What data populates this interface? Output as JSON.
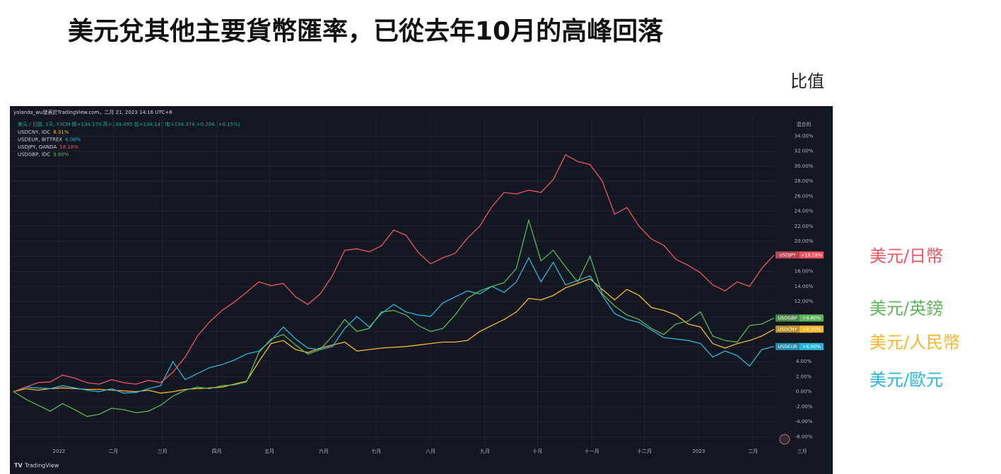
{
  "chart_data": {
    "type": "line",
    "title": "美元兌其他主要貨幣匯率，已從去年10月的高峰回落",
    "note": "比值",
    "watermark": "yolanda_wu發表於TradingView.com，二月 21, 2023 14:16 UTC+8",
    "header": "美元 / 日圓, 1天, FXCM 開=134.170 高=134.495 低=134.147 收=134.374 +0.204 (+0.15%)",
    "axis_title": "混合的",
    "footer": "TradingView",
    "grid": true,
    "x": [
      -26,
      -19,
      -12,
      -5,
      2,
      9,
      16,
      23,
      30,
      37,
      44,
      51,
      58,
      65,
      72,
      79,
      86,
      93,
      100,
      107,
      114,
      121,
      128,
      135,
      142,
      149,
      156,
      163,
      170,
      177,
      184,
      191,
      198,
      205,
      212,
      219,
      226,
      233,
      240,
      247,
      254,
      261,
      268,
      275,
      282,
      289,
      296,
      303,
      310,
      317,
      324,
      331,
      338,
      345,
      352,
      359,
      366,
      373,
      380,
      387,
      394,
      401,
      408
    ],
    "xlim": [
      -26,
      408
    ],
    "xticks": [
      {
        "value": 0,
        "label": "2022"
      },
      {
        "value": 31,
        "label": "二月"
      },
      {
        "value": 59,
        "label": "三月"
      },
      {
        "value": 90,
        "label": "四月"
      },
      {
        "value": 120,
        "label": "五月"
      },
      {
        "value": 151,
        "label": "六月"
      },
      {
        "value": 181,
        "label": "七月"
      },
      {
        "value": 212,
        "label": "八月"
      },
      {
        "value": 243,
        "label": "九月"
      },
      {
        "value": 273,
        "label": "十月"
      },
      {
        "value": 304,
        "label": "十一月"
      },
      {
        "value": 334,
        "label": "十二月"
      },
      {
        "value": 365,
        "label": "2023"
      },
      {
        "value": 396,
        "label": "二月"
      },
      {
        "value": 424,
        "label": "三月"
      }
    ],
    "ylim": [
      -7,
      36
    ],
    "yticks": [
      {
        "value": -6,
        "label": "-6.00%"
      },
      {
        "value": -4,
        "label": "-4.00%"
      },
      {
        "value": -2,
        "label": "-2.00%"
      },
      {
        "value": 0,
        "label": "0.00%"
      },
      {
        "value": 2,
        "label": "2.00%"
      },
      {
        "value": 4,
        "label": "4.00%"
      },
      {
        "value": 6,
        "label": "6.00%"
      },
      {
        "value": 8,
        "label": "8.00%"
      },
      {
        "value": 10,
        "label": "10.00%"
      },
      {
        "value": 12,
        "label": "12.00%"
      },
      {
        "value": 14,
        "label": "14.00%"
      },
      {
        "value": 16,
        "label": "16.00%"
      },
      {
        "value": 18,
        "label": "18.00%"
      },
      {
        "value": 20,
        "label": "20.00%"
      },
      {
        "value": 22,
        "label": "22.00%"
      },
      {
        "value": 24,
        "label": "24.00%"
      },
      {
        "value": 26,
        "label": "26.00%"
      },
      {
        "value": 28,
        "label": "28.00%"
      },
      {
        "value": 30,
        "label": "30.00%"
      },
      {
        "value": 32,
        "label": "32.00%"
      },
      {
        "value": 34,
        "label": "34.00%"
      }
    ],
    "series": [
      {
        "name": "美元/人民幣",
        "color": "#f5b82e",
        "source": "USDCNY, IDC",
        "last_label": "8.31%",
        "tag": "USDCNY",
        "tag_label": "+8.31%",
        "values": [
          0,
          0.4,
          0.2,
          0.4,
          0.5,
          0.4,
          0.3,
          0.3,
          0.2,
          0.1,
          0.0,
          0.2,
          -0.2,
          0.0,
          0.3,
          0.4,
          0.5,
          0.6,
          1.0,
          1.4,
          4.0,
          6.4,
          6.8,
          5.6,
          5.2,
          5.8,
          6.2,
          6.6,
          5.4,
          5.6,
          5.8,
          5.9,
          6.0,
          6.2,
          6.4,
          6.6,
          6.6,
          6.8,
          8.0,
          8.8,
          9.6,
          10.6,
          12.4,
          12.2,
          12.8,
          13.8,
          14.4,
          15.0,
          13.6,
          12.2,
          13.6,
          12.8,
          11.2,
          10.8,
          10.2,
          9.0,
          8.6,
          6.4,
          5.8,
          6.4,
          6.8,
          7.4,
          8.31
        ]
      },
      {
        "name": "美元/歐元",
        "color": "#2bb5d8",
        "source": "USDEUR, BITTREX",
        "last_label": "6.00%",
        "tag": "USDEUR",
        "tag_label": "+6.00%",
        "values": [
          0,
          0.6,
          0.5,
          0.4,
          0.8,
          0.5,
          0.2,
          0.0,
          0.4,
          -0.2,
          -0.1,
          0.4,
          0.8,
          4.0,
          1.6,
          2.4,
          3.2,
          3.6,
          4.2,
          5.0,
          5.4,
          6.8,
          8.6,
          7.0,
          5.8,
          5.6,
          6.0,
          8.4,
          10.0,
          8.6,
          10.4,
          11.6,
          10.6,
          10.2,
          10.0,
          11.8,
          12.6,
          13.4,
          13.0,
          14.0,
          13.2,
          14.6,
          17.8,
          14.6,
          17.2,
          14.2,
          14.8,
          15.4,
          12.8,
          10.4,
          9.6,
          9.2,
          8.2,
          7.2,
          7.0,
          6.8,
          6.4,
          4.6,
          5.4,
          4.8,
          3.4,
          5.6,
          6.0
        ]
      },
      {
        "name": "美元/日幣",
        "color": "#f05461",
        "source": "USDJPY, OANDA",
        "last_label": "18.18%",
        "tag": "USDJPY",
        "tag_label": "+18.18%",
        "values": [
          0,
          0.6,
          1.2,
          1.3,
          2.2,
          1.8,
          1.2,
          1.0,
          1.6,
          1.2,
          1.0,
          1.5,
          1.2,
          2.6,
          4.6,
          7.4,
          9.3,
          10.8,
          11.9,
          13.2,
          14.6,
          14.1,
          14.4,
          12.6,
          11.6,
          13.0,
          15.4,
          18.8,
          19.0,
          18.6,
          19.4,
          21.5,
          20.8,
          18.5,
          17.0,
          17.8,
          18.4,
          20.4,
          22.0,
          24.6,
          26.5,
          26.3,
          26.8,
          26.5,
          28.2,
          31.5,
          30.6,
          30.2,
          28.0,
          23.6,
          24.5,
          22.0,
          20.3,
          19.5,
          17.6,
          16.8,
          15.8,
          14.2,
          13.4,
          14.6,
          14.0,
          16.4,
          18.18
        ]
      },
      {
        "name": "美元/英鎊",
        "color": "#5fb358",
        "source": "USDGBP, IDC",
        "last_label": "9.80%",
        "tag": "USDGBP",
        "tag_label": "+9.80%",
        "values": [
          0,
          -1.0,
          -1.8,
          -2.6,
          -1.6,
          -2.4,
          -3.3,
          -3.0,
          -2.2,
          -2.4,
          -2.8,
          -2.6,
          -1.8,
          -0.6,
          0.2,
          0.6,
          0.4,
          0.8,
          0.9,
          1.3,
          5.2,
          7.0,
          7.6,
          6.2,
          5.0,
          5.6,
          7.4,
          9.6,
          8.0,
          8.4,
          10.6,
          10.8,
          10.2,
          8.8,
          8.0,
          8.4,
          10.2,
          12.4,
          13.4,
          14.0,
          14.5,
          16.4,
          22.8,
          17.4,
          18.8,
          16.6,
          14.6,
          18.0,
          13.0,
          11.4,
          10.2,
          9.6,
          8.4,
          7.6,
          9.0,
          9.4,
          10.6,
          7.4,
          6.8,
          6.6,
          8.8,
          9.0,
          9.8
        ]
      }
    ]
  }
}
